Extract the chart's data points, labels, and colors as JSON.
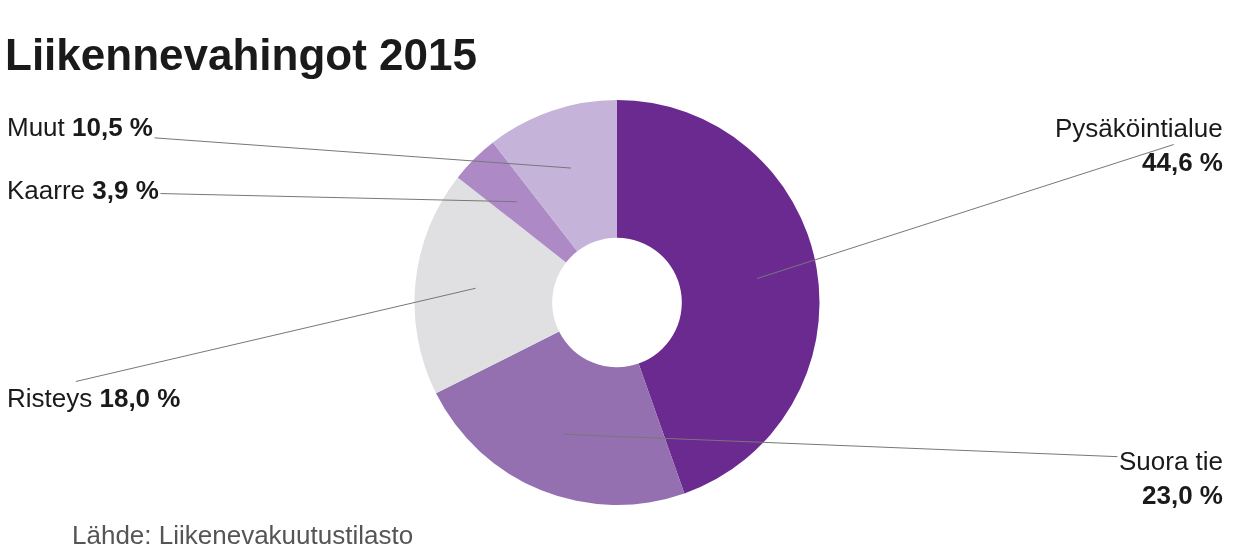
{
  "chart_data": {
    "type": "donut",
    "title": "Liikennevahingot 2015",
    "categories": [
      "Pysäköintialue",
      "Suora tie",
      "Risteys",
      "Kaarre",
      "Muut"
    ],
    "values": [
      44.6,
      23.0,
      18.0,
      3.9,
      10.5
    ],
    "value_labels": [
      "44,6 %",
      "23,0 %",
      "18,0 %",
      "3,9 %",
      "10,5 %"
    ],
    "colors": [
      "#6b2a8f",
      "#9470b0",
      "#e0e0e3",
      "#ad8ac6",
      "#c5b3d9"
    ],
    "annotations": [
      "Lähde: Liikenevakuutustilasto"
    ]
  }
}
